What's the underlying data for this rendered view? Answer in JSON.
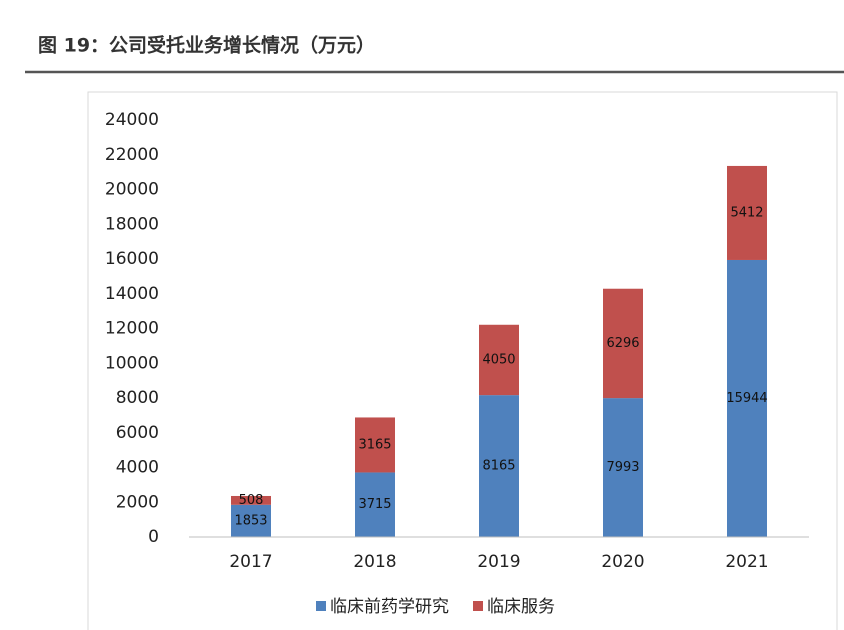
{
  "chart_data": {
    "type": "stacked_bar",
    "title": "图 19：公司受托业务增长情况（万元）",
    "categories": [
      "2017",
      "2018",
      "2019",
      "2020",
      "2021"
    ],
    "series": [
      {
        "name": "临床前药学研究",
        "color": "#4f81bd",
        "values": [
          1853,
          3715,
          8165,
          7993,
          15944
        ]
      },
      {
        "name": "临床服务",
        "color": "#c0504d",
        "values": [
          508,
          3165,
          4050,
          6296,
          5412
        ]
      }
    ],
    "ylim": [
      0,
      24000
    ],
    "yticks": [
      0,
      2000,
      4000,
      6000,
      8000,
      10000,
      12000,
      14000,
      16000,
      18000,
      20000,
      22000,
      24000
    ],
    "grid": false,
    "legend": "bottom"
  }
}
